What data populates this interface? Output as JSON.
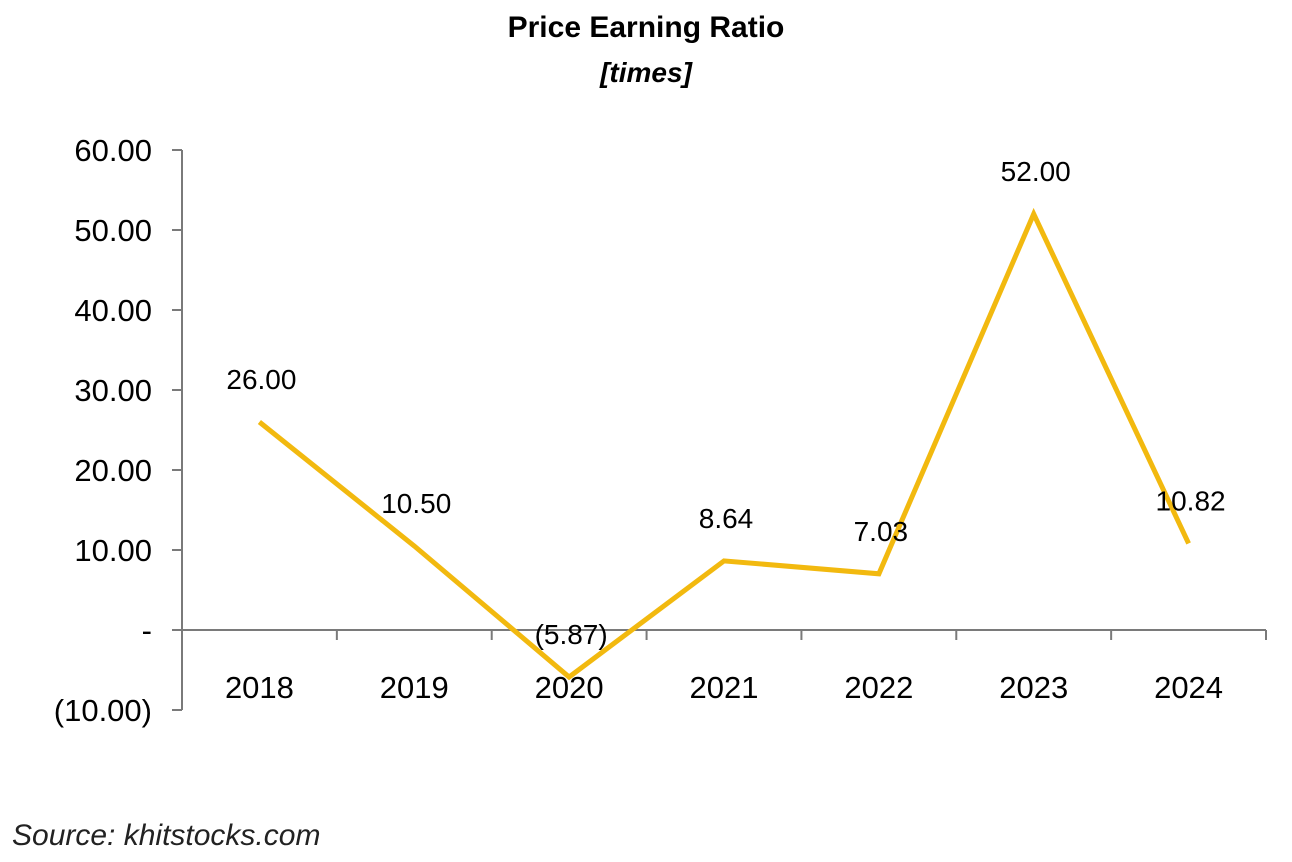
{
  "chart_data": {
    "type": "line",
    "title": "Price Earning Ratio",
    "subtitle": "[times]",
    "categories": [
      "2018",
      "2019",
      "2020",
      "2021",
      "2022",
      "2023",
      "2024"
    ],
    "series": [
      {
        "values": [
          26.0,
          10.5,
          -5.87,
          8.64,
          7.03,
          52.0,
          10.82
        ],
        "labels": [
          "26.00",
          "10.50",
          "(5.87)",
          "8.64",
          "7.03",
          "52.00",
          "10.82"
        ],
        "color": "#f2b90f"
      }
    ],
    "ylim": [
      -10,
      60
    ],
    "yticks": [
      -10,
      0,
      10,
      20,
      30,
      40,
      50,
      60
    ],
    "ytick_labels": [
      "(10.00)",
      "-",
      "10.00",
      "20.00",
      "30.00",
      "40.00",
      "50.00",
      "60.00"
    ],
    "grid": false,
    "legend": "none"
  },
  "source": "Source: khitstocks.com"
}
